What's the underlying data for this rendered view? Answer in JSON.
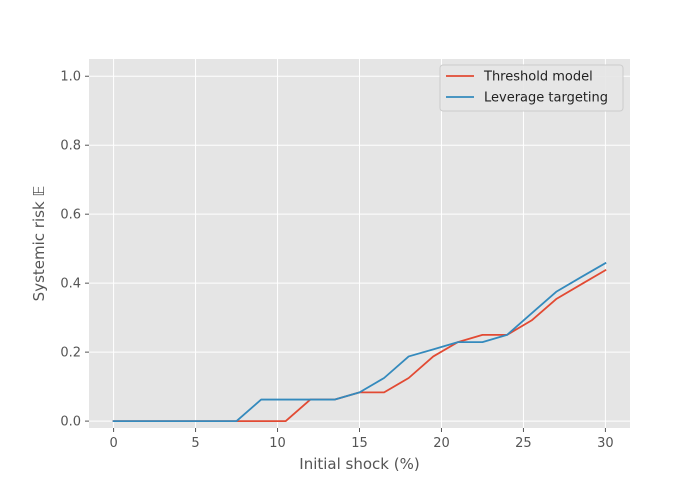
{
  "chart_data": {
    "type": "line",
    "title": "",
    "xlabel": "Initial shock (%)",
    "ylabel": "Systemic risk 𝔼",
    "xlim": [
      -1.5,
      31.5
    ],
    "ylim": [
      -0.02,
      1.05
    ],
    "xticks": [
      0,
      5,
      10,
      15,
      20,
      25,
      30
    ],
    "yticks": [
      0.0,
      0.2,
      0.4,
      0.6,
      0.8,
      1.0
    ],
    "xtick_labels": [
      "0",
      "5",
      "10",
      "15",
      "20",
      "25",
      "30"
    ],
    "ytick_labels": [
      "0.0",
      "0.2",
      "0.4",
      "0.6",
      "0.8",
      "1.0"
    ],
    "grid": true,
    "legend_position": "top-right",
    "series": [
      {
        "name": "Threshold model",
        "color": "#E24A33",
        "x": [
          0,
          1.5,
          3,
          4.5,
          6,
          7.5,
          9,
          10.5,
          12,
          13.5,
          15,
          16.5,
          18,
          19.5,
          21,
          22.5,
          24,
          25.5,
          27,
          28.5,
          30
        ],
        "y": [
          0,
          0,
          0,
          0,
          0,
          0,
          0,
          0,
          0.0625,
          0.0625,
          0.0833,
          0.0833,
          0.125,
          0.1875,
          0.229,
          0.25,
          0.25,
          0.292,
          0.354,
          0.396,
          0.4375
        ]
      },
      {
        "name": "Leverage targeting",
        "color": "#348ABD",
        "x": [
          0,
          1.5,
          3,
          4.5,
          6,
          7.5,
          9,
          10.5,
          12,
          13.5,
          15,
          16.5,
          18,
          19.5,
          21,
          22.5,
          24,
          25.5,
          27,
          28.5,
          30
        ],
        "y": [
          0,
          0,
          0,
          0,
          0,
          0,
          0.0625,
          0.0625,
          0.0625,
          0.0625,
          0.0833,
          0.125,
          0.1875,
          0.208,
          0.229,
          0.229,
          0.25,
          0.3125,
          0.375,
          0.417,
          0.458
        ]
      }
    ]
  }
}
